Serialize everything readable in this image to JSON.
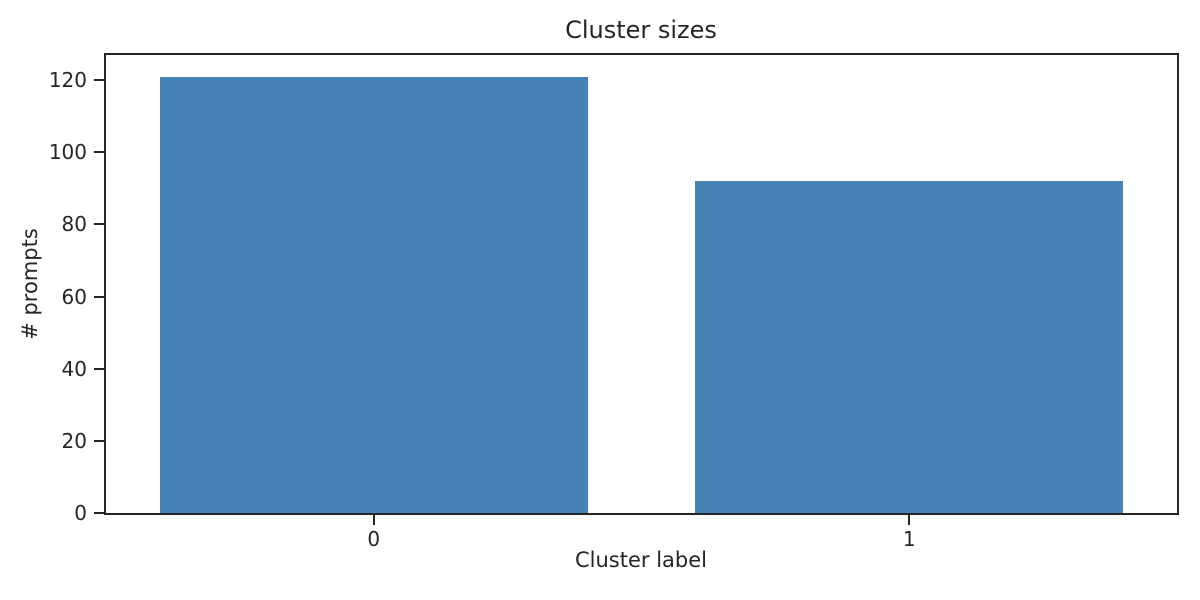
{
  "chart_data": {
    "type": "bar",
    "title": "Cluster sizes",
    "xlabel": "Cluster label",
    "ylabel": "# prompts",
    "categories": [
      "0",
      "1"
    ],
    "values": [
      121,
      92
    ],
    "yticks": [
      0,
      20,
      40,
      60,
      80,
      100,
      120
    ],
    "ylim": [
      0,
      127
    ],
    "xlim": [
      -0.5,
      1.5
    ],
    "bar_width": 0.8,
    "grid": false,
    "legend": null,
    "bar_color": "#4682B4",
    "axis_color": "#262626",
    "background_color": "#ffffff"
  }
}
